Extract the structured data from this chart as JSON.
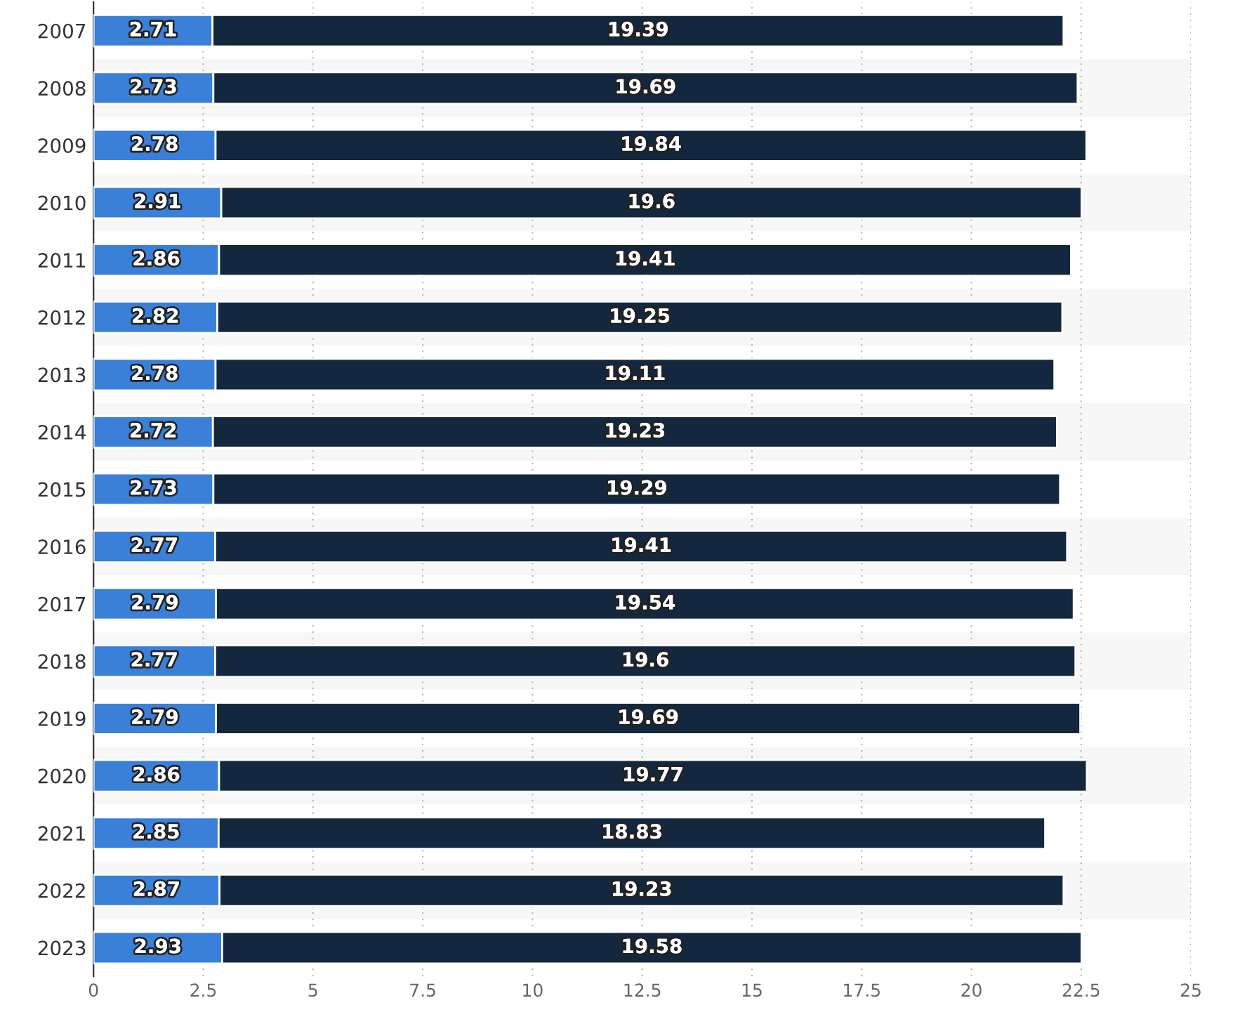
{
  "chart_data": {
    "type": "bar",
    "orientation": "horizontal",
    "stacked": true,
    "data_labels": true,
    "grid": "x",
    "legend": false,
    "categories": [
      "2007",
      "2008",
      "2009",
      "2010",
      "2011",
      "2012",
      "2013",
      "2014",
      "2015",
      "2016",
      "2017",
      "2018",
      "2019",
      "2020",
      "2021",
      "2022",
      "2023"
    ],
    "series": [
      {
        "color": "#3a7fd8",
        "values": [
          2.71,
          2.73,
          2.78,
          2.91,
          2.86,
          2.82,
          2.78,
          2.72,
          2.73,
          2.77,
          2.79,
          2.77,
          2.79,
          2.86,
          2.85,
          2.87,
          2.93
        ]
      },
      {
        "color": "#13283f",
        "values": [
          19.39,
          19.69,
          19.84,
          19.6,
          19.41,
          19.25,
          19.11,
          19.23,
          19.29,
          19.41,
          19.54,
          19.6,
          19.69,
          19.77,
          18.83,
          19.23,
          19.58
        ]
      }
    ],
    "xlim": [
      0,
      25
    ],
    "xticks": [
      0,
      2.5,
      5,
      7.5,
      10,
      12.5,
      15,
      17.5,
      20,
      22.5,
      25
    ]
  }
}
